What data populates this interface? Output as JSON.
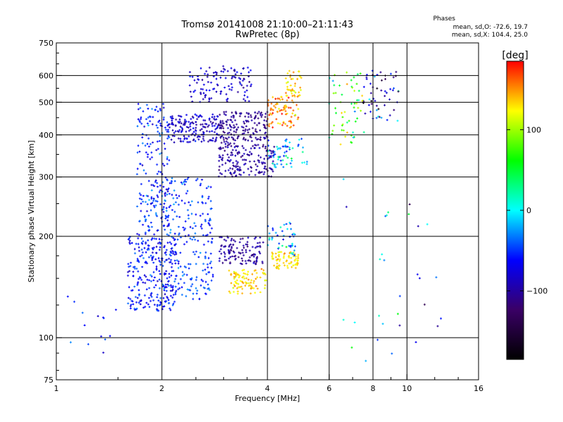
{
  "title_line1": "Tromsø 20141008 21:10:00–21:11:43",
  "title_line2": "RwPretec (8p)",
  "stats": {
    "heading": "Phases",
    "line1": "mean, sd,O: -72.6, 19.7",
    "line2": "mean, sd,X: 104.4, 25.0"
  },
  "colorbar": {
    "unit_label": "[deg]",
    "ticks": [
      {
        "value": 100,
        "label": "100"
      },
      {
        "value": 0,
        "label": "0"
      },
      {
        "value": -100,
        "label": "−100"
      }
    ],
    "range": [
      -185,
      185
    ],
    "colors": [
      "#000000",
      "#3a0066",
      "#0000ff",
      "#00ffff",
      "#00ff00",
      "#ffff00",
      "#ff0000"
    ]
  },
  "chart_data": {
    "type": "scatter",
    "xlabel": "Frequency [MHz]",
    "ylabel": "Stationary phase Virtual Height [km]",
    "x_scale": "log",
    "y_scale": "log",
    "xlim": [
      1,
      16
    ],
    "ylim": [
      75,
      750
    ],
    "x_ticks": [
      {
        "value": 1,
        "label": "1"
      },
      {
        "value": 2,
        "label": "2"
      },
      {
        "value": 4,
        "label": "4"
      },
      {
        "value": 6,
        "label": "6"
      },
      {
        "value": 8,
        "label": "8"
      },
      {
        "value": 10,
        "label": "10"
      },
      {
        "value": 16,
        "label": "16"
      }
    ],
    "y_ticks": [
      {
        "value": 75,
        "label": "75"
      },
      {
        "value": 100,
        "label": "100"
      },
      {
        "value": 200,
        "label": "200"
      },
      {
        "value": 300,
        "label": "300"
      },
      {
        "value": 400,
        "label": "400"
      },
      {
        "value": 500,
        "label": "500"
      },
      {
        "value": 600,
        "label": "600"
      },
      {
        "value": 750,
        "label": "750"
      }
    ],
    "grid_x": [
      2,
      4,
      6,
      8,
      10
    ],
    "grid_y": [
      100,
      200,
      300,
      400,
      500,
      600
    ],
    "clusters": [
      {
        "x_range": [
          1.6,
          2.2
        ],
        "y_range": [
          120,
          200
        ],
        "phase": -60,
        "spread": 20,
        "n": 260
      },
      {
        "x_range": [
          1.7,
          2.1
        ],
        "y_range": [
          200,
          500
        ],
        "phase": -55,
        "spread": 25,
        "n": 200
      },
      {
        "x_range": [
          2.0,
          2.8
        ],
        "y_range": [
          130,
          300
        ],
        "phase": -50,
        "spread": 20,
        "n": 230
      },
      {
        "x_range": [
          2.1,
          2.9
        ],
        "y_range": [
          380,
          460
        ],
        "phase": -85,
        "spread": 20,
        "n": 160
      },
      {
        "x_range": [
          2.4,
          3.6
        ],
        "y_range": [
          500,
          640
        ],
        "phase": -80,
        "spread": 25,
        "n": 110
      },
      {
        "x_range": [
          2.9,
          4.0
        ],
        "y_range": [
          370,
          470
        ],
        "phase": -105,
        "spread": 15,
        "n": 180
      },
      {
        "x_range": [
          2.9,
          4.2
        ],
        "y_range": [
          300,
          370
        ],
        "phase": -100,
        "spread": 15,
        "n": 160
      },
      {
        "x_range": [
          2.9,
          3.9
        ],
        "y_range": [
          165,
          200
        ],
        "phase": -100,
        "spread": 15,
        "n": 120
      },
      {
        "x_range": [
          3.1,
          4.0
        ],
        "y_range": [
          135,
          160
        ],
        "phase": 130,
        "spread": 20,
        "n": 90
      },
      {
        "x_range": [
          4.1,
          4.9
        ],
        "y_range": [
          160,
          180
        ],
        "phase": 130,
        "spread": 15,
        "n": 70
      },
      {
        "x_range": [
          4.0,
          4.9
        ],
        "y_range": [
          420,
          520
        ],
        "phase": 150,
        "spread": 25,
        "n": 80
      },
      {
        "x_range": [
          4.5,
          5.0
        ],
        "y_range": [
          520,
          620
        ],
        "phase": 135,
        "spread": 20,
        "n": 45
      },
      {
        "x_range": [
          4.0,
          5.2
        ],
        "y_range": [
          320,
          390
        ],
        "phase": -20,
        "spread": 40,
        "n": 60
      },
      {
        "x_range": [
          4.0,
          4.8
        ],
        "y_range": [
          175,
          220
        ],
        "phase": -20,
        "spread": 50,
        "n": 45
      },
      {
        "x_range": [
          6.0,
          7.6
        ],
        "y_range": [
          370,
          620
        ],
        "phase": 70,
        "spread": 60,
        "n": 60
      },
      {
        "x_range": [
          7.5,
          9.5
        ],
        "y_range": [
          440,
          620
        ],
        "phase": -80,
        "spread": 70,
        "n": 55
      },
      {
        "x_range": [
          6.0,
          13.0
        ],
        "y_range": [
          85,
          300
        ],
        "phase": -40,
        "spread": 80,
        "n": 30
      },
      {
        "x_range": [
          1.0,
          1.5
        ],
        "y_range": [
          90,
          135
        ],
        "phase": -60,
        "spread": 30,
        "n": 14
      }
    ]
  }
}
